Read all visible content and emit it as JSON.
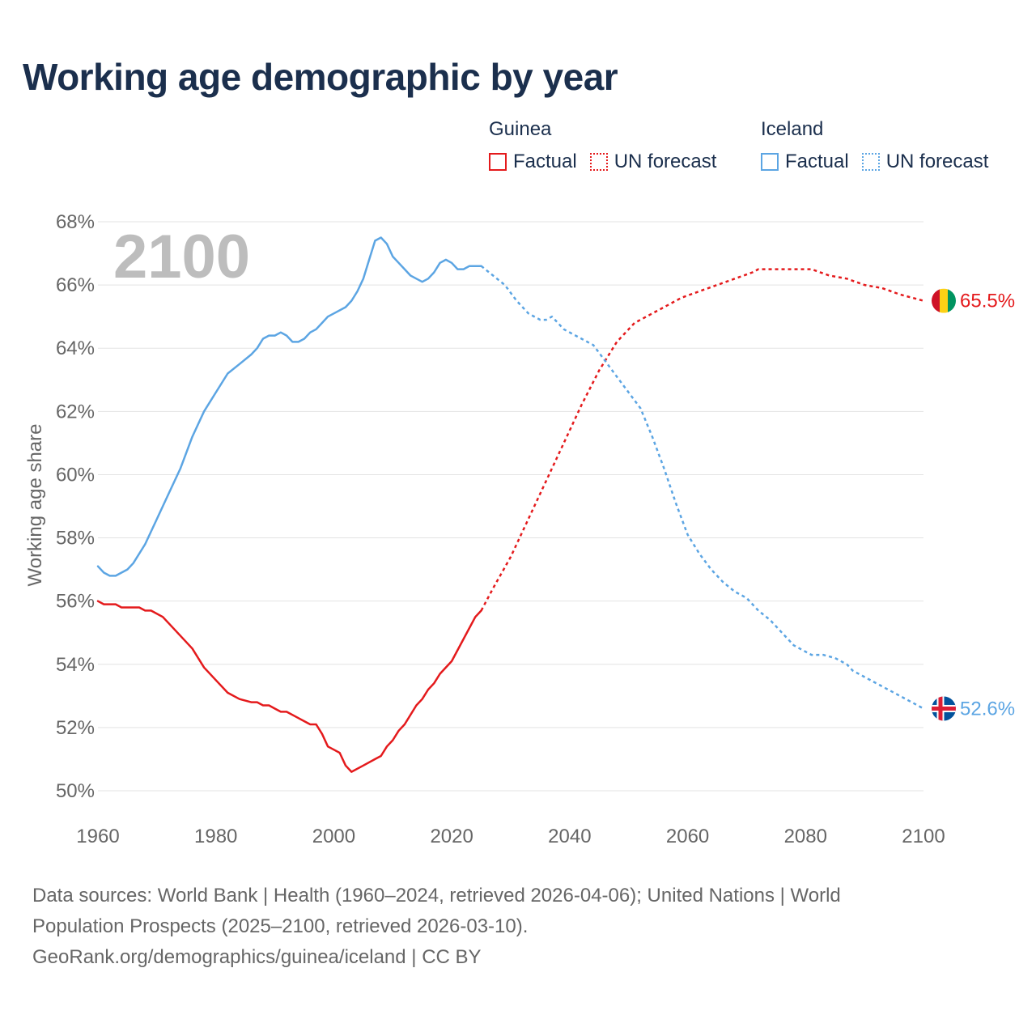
{
  "title": "Working age demographic by year",
  "legend": {
    "groups": [
      {
        "name": "Guinea",
        "factual_label": "Factual",
        "forecast_label": "UN forecast",
        "color": "#e41a1c"
      },
      {
        "name": "Iceland",
        "factual_label": "Factual",
        "forecast_label": "UN forecast",
        "color": "#5ca5e3"
      }
    ]
  },
  "sources": {
    "line1": "Data sources: World Bank | Health (1960–2024, retrieved 2026-04-06); United Nations | World",
    "line2": "Population Prospects (2025–2100, retrieved 2026-03-10).",
    "line3": "GeoRank.org/demographics/guinea/iceland | CC BY"
  },
  "chart_data": {
    "type": "line",
    "ylabel": "Working age share",
    "xlabel": "",
    "year_watermark": "2100",
    "xlim": [
      1960,
      2100
    ],
    "ylim": [
      50,
      68
    ],
    "x_ticks": [
      "1960",
      "1980",
      "2000",
      "2020",
      "2040",
      "2060",
      "2080",
      "2100"
    ],
    "x_tick_values": [
      1960,
      1980,
      2000,
      2020,
      2040,
      2060,
      2080,
      2100
    ],
    "y_ticks": [
      "50%",
      "52%",
      "54%",
      "56%",
      "58%",
      "60%",
      "62%",
      "64%",
      "66%",
      "68%"
    ],
    "y_tick_values": [
      50,
      52,
      54,
      56,
      58,
      60,
      62,
      64,
      66,
      68
    ],
    "grid": true,
    "series": [
      {
        "name": "Guinea",
        "color": "#e41a1c",
        "end_label": "65.5%",
        "flag_colors": [
          "#ce1126",
          "#fcd116",
          "#009460"
        ],
        "factual": [
          [
            1960,
            56.0
          ],
          [
            1961,
            55.9
          ],
          [
            1963,
            55.9
          ],
          [
            1964,
            55.8
          ],
          [
            1967,
            55.8
          ],
          [
            1968,
            55.7
          ],
          [
            1969,
            55.7
          ],
          [
            1971,
            55.5
          ],
          [
            1973,
            55.1
          ],
          [
            1976,
            54.5
          ],
          [
            1978,
            53.9
          ],
          [
            1980,
            53.5
          ],
          [
            1982,
            53.1
          ],
          [
            1984,
            52.9
          ],
          [
            1986,
            52.8
          ],
          [
            1987,
            52.8
          ],
          [
            1988,
            52.7
          ],
          [
            1989,
            52.7
          ],
          [
            1990,
            52.6
          ],
          [
            1991,
            52.5
          ],
          [
            1992,
            52.5
          ],
          [
            1994,
            52.3
          ],
          [
            1995,
            52.2
          ],
          [
            1996,
            52.1
          ],
          [
            1997,
            52.1
          ],
          [
            1998,
            51.8
          ],
          [
            1999,
            51.4
          ],
          [
            2000,
            51.3
          ],
          [
            2001,
            51.2
          ],
          [
            2002,
            50.8
          ],
          [
            2003,
            50.6
          ],
          [
            2005,
            50.8
          ],
          [
            2007,
            51.0
          ],
          [
            2008,
            51.1
          ],
          [
            2009,
            51.4
          ],
          [
            2010,
            51.6
          ],
          [
            2011,
            51.9
          ],
          [
            2012,
            52.1
          ],
          [
            2014,
            52.7
          ],
          [
            2015,
            52.9
          ],
          [
            2016,
            53.2
          ],
          [
            2017,
            53.4
          ],
          [
            2018,
            53.7
          ],
          [
            2020,
            54.1
          ],
          [
            2022,
            54.8
          ],
          [
            2024,
            55.5
          ],
          [
            2025,
            55.7
          ]
        ],
        "forecast": [
          [
            2025,
            55.7
          ],
          [
            2027,
            56.4
          ],
          [
            2030,
            57.4
          ],
          [
            2033,
            58.6
          ],
          [
            2036,
            59.8
          ],
          [
            2039,
            61.0
          ],
          [
            2042,
            62.2
          ],
          [
            2045,
            63.3
          ],
          [
            2048,
            64.2
          ],
          [
            2051,
            64.8
          ],
          [
            2053,
            65.0
          ],
          [
            2056,
            65.3
          ],
          [
            2059,
            65.6
          ],
          [
            2062,
            65.8
          ],
          [
            2065,
            66.0
          ],
          [
            2068,
            66.2
          ],
          [
            2071,
            66.4
          ],
          [
            2072,
            66.5
          ],
          [
            2081,
            66.5
          ],
          [
            2084,
            66.3
          ],
          [
            2087,
            66.2
          ],
          [
            2090,
            66.0
          ],
          [
            2093,
            65.9
          ],
          [
            2096,
            65.7
          ],
          [
            2098,
            65.6
          ],
          [
            2100,
            65.5
          ]
        ]
      },
      {
        "name": "Iceland",
        "color": "#5ca5e3",
        "end_label": "52.6%",
        "flag_colors": [
          "#02529c",
          "#ffffff",
          "#dc1e35"
        ],
        "factual": [
          [
            1960,
            57.1
          ],
          [
            1961,
            56.9
          ],
          [
            1962,
            56.8
          ],
          [
            1963,
            56.8
          ],
          [
            1964,
            56.9
          ],
          [
            1965,
            57.0
          ],
          [
            1966,
            57.2
          ],
          [
            1968,
            57.8
          ],
          [
            1970,
            58.6
          ],
          [
            1972,
            59.4
          ],
          [
            1974,
            60.2
          ],
          [
            1976,
            61.2
          ],
          [
            1978,
            62.0
          ],
          [
            1980,
            62.6
          ],
          [
            1982,
            63.2
          ],
          [
            1984,
            63.5
          ],
          [
            1986,
            63.8
          ],
          [
            1987,
            64.0
          ],
          [
            1988,
            64.3
          ],
          [
            1989,
            64.4
          ],
          [
            1990,
            64.4
          ],
          [
            1991,
            64.5
          ],
          [
            1992,
            64.4
          ],
          [
            1993,
            64.2
          ],
          [
            1994,
            64.2
          ],
          [
            1995,
            64.3
          ],
          [
            1996,
            64.5
          ],
          [
            1997,
            64.6
          ],
          [
            1998,
            64.8
          ],
          [
            1999,
            65.0
          ],
          [
            2000,
            65.1
          ],
          [
            2002,
            65.3
          ],
          [
            2003,
            65.5
          ],
          [
            2004,
            65.8
          ],
          [
            2005,
            66.2
          ],
          [
            2006,
            66.8
          ],
          [
            2007,
            67.4
          ],
          [
            2008,
            67.5
          ],
          [
            2009,
            67.3
          ],
          [
            2010,
            66.9
          ],
          [
            2011,
            66.7
          ],
          [
            2012,
            66.5
          ],
          [
            2013,
            66.3
          ],
          [
            2014,
            66.2
          ],
          [
            2015,
            66.1
          ],
          [
            2016,
            66.2
          ],
          [
            2017,
            66.4
          ],
          [
            2018,
            66.7
          ],
          [
            2019,
            66.8
          ],
          [
            2020,
            66.7
          ],
          [
            2021,
            66.5
          ],
          [
            2022,
            66.5
          ],
          [
            2023,
            66.6
          ],
          [
            2025,
            66.6
          ]
        ],
        "forecast": [
          [
            2025,
            66.6
          ],
          [
            2027,
            66.3
          ],
          [
            2029,
            66.0
          ],
          [
            2031,
            65.5
          ],
          [
            2033,
            65.1
          ],
          [
            2035,
            64.9
          ],
          [
            2036,
            64.9
          ],
          [
            2037,
            65.0
          ],
          [
            2039,
            64.6
          ],
          [
            2041,
            64.4
          ],
          [
            2044,
            64.1
          ],
          [
            2046,
            63.6
          ],
          [
            2048,
            63.1
          ],
          [
            2050,
            62.6
          ],
          [
            2052,
            62.1
          ],
          [
            2054,
            61.2
          ],
          [
            2056,
            60.2
          ],
          [
            2058,
            59.1
          ],
          [
            2060,
            58.1
          ],
          [
            2062,
            57.5
          ],
          [
            2064,
            57.0
          ],
          [
            2066,
            56.6
          ],
          [
            2068,
            56.3
          ],
          [
            2070,
            56.1
          ],
          [
            2072,
            55.7
          ],
          [
            2074,
            55.4
          ],
          [
            2076,
            55.0
          ],
          [
            2078,
            54.6
          ],
          [
            2080,
            54.4
          ],
          [
            2081,
            54.3
          ],
          [
            2083,
            54.3
          ],
          [
            2085,
            54.2
          ],
          [
            2087,
            54.0
          ],
          [
            2088,
            53.8
          ],
          [
            2090,
            53.6
          ],
          [
            2092,
            53.4
          ],
          [
            2094,
            53.2
          ],
          [
            2096,
            53.0
          ],
          [
            2098,
            52.8
          ],
          [
            2099,
            52.7
          ],
          [
            2100,
            52.6
          ]
        ]
      }
    ]
  }
}
